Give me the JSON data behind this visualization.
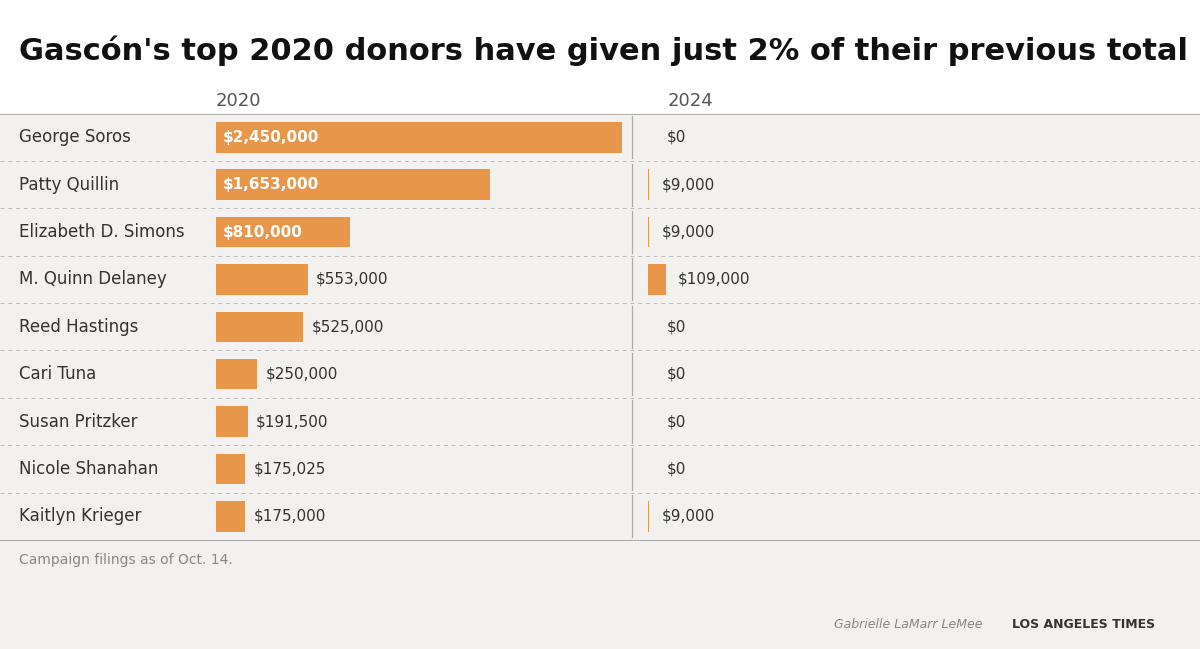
{
  "title": "Gascón's top 2020 donors have given just 2% of their previous total",
  "donors": [
    "George Soros",
    "Patty Quillin",
    "Elizabeth D. Simons",
    "M. Quinn Delaney",
    "Reed Hastings",
    "Cari Tuna",
    "Susan Pritzker",
    "Nicole Shanahan",
    "Kaitlyn Krieger"
  ],
  "values_2020": [
    2450000,
    1653000,
    810000,
    553000,
    525000,
    250000,
    191500,
    175025,
    175000
  ],
  "values_2024": [
    0,
    9000,
    9000,
    109000,
    0,
    0,
    0,
    0,
    9000
  ],
  "labels_2020": [
    "$2,450,000",
    "$1,653,000",
    "$810,000",
    "$553,000",
    "$525,000",
    "$250,000",
    "$191,500",
    "$175,025",
    "$175,000"
  ],
  "labels_2024": [
    "$0",
    "$9,000",
    "$9,000",
    "$109,000",
    "$0",
    "$0",
    "$0",
    "$0",
    "$9,000"
  ],
  "bar_color": "#E8974A",
  "bg_color": "#F2F1EF",
  "white_color": "#FFFFFF",
  "text_color": "#333333",
  "header_color": "#555555",
  "footnote_color": "#888888",
  "divider_color": "#C8C8C8",
  "col_2020_label": "2020",
  "col_2024_label": "2024",
  "footnote": "Campaign filings as of Oct. 14.",
  "credit_left": "Gabrielle LaMarr LeMee",
  "credit_right": "LOS ANGELES TIMES",
  "title_fontsize": 22,
  "header_fontsize": 13,
  "name_fontsize": 12,
  "bar_label_fontsize": 11,
  "footnote_fontsize": 10,
  "credit_fontsize": 9
}
